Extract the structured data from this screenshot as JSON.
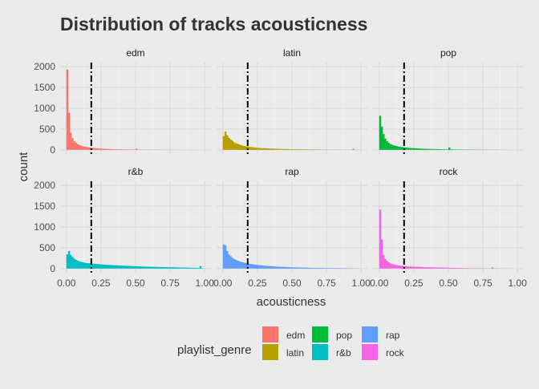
{
  "chart_data": {
    "type": "histogram-facet",
    "title": "Distribution of tracks acousticness",
    "xlabel": "acousticness",
    "ylabel": "count",
    "xlim": [
      0,
      1
    ],
    "ylim": [
      0,
      2000
    ],
    "x_ticks": [
      "0.00",
      "0.25",
      "0.50",
      "0.75",
      "1.00"
    ],
    "y_ticks": [
      "0",
      "500",
      "1000",
      "1500",
      "2000"
    ],
    "bin_width": 0.0125,
    "reference_line": {
      "x": 0.18,
      "style": "dashed-dotted",
      "color": "#000000"
    },
    "legend": {
      "title": "playlist_genre",
      "position": "bottom",
      "entries": [
        {
          "label": "edm",
          "color": "#F8766D"
        },
        {
          "label": "latin",
          "color": "#B79F00"
        },
        {
          "label": "pop",
          "color": "#00BA38"
        },
        {
          "label": "r&b",
          "color": "#00BFC4"
        },
        {
          "label": "rap",
          "color": "#619CFF"
        },
        {
          "label": "rock",
          "color": "#F564E3"
        }
      ]
    },
    "series": [
      {
        "name": "edm",
        "color": "#F8766D",
        "values": [
          1930,
          890,
          410,
          280,
          210,
          170,
          140,
          115,
          100,
          85,
          75,
          70,
          60,
          55,
          50,
          45,
          40,
          38,
          35,
          30,
          28,
          25,
          25,
          22,
          20,
          20,
          18,
          16,
          15,
          14,
          12,
          12,
          10,
          10,
          9,
          8,
          8,
          7,
          6,
          6,
          30,
          6,
          5,
          5,
          4,
          4,
          4,
          3,
          3,
          3,
          3,
          2,
          2,
          2,
          2,
          2,
          2,
          1,
          1,
          1,
          1,
          1,
          1,
          1,
          1,
          0,
          0,
          0,
          0,
          0,
          0,
          0,
          0,
          0,
          0,
          0,
          0,
          0,
          0,
          0
        ]
      },
      {
        "name": "latin",
        "color": "#B79F00",
        "values": [
          330,
          440,
          350,
          290,
          250,
          220,
          180,
          160,
          150,
          130,
          110,
          100,
          90,
          85,
          80,
          70,
          65,
          60,
          55,
          50,
          50,
          45,
          40,
          40,
          38,
          35,
          32,
          30,
          30,
          28,
          25,
          25,
          22,
          22,
          20,
          20,
          18,
          18,
          16,
          15,
          15,
          14,
          13,
          12,
          12,
          11,
          10,
          10,
          9,
          9,
          8,
          8,
          8,
          7,
          7,
          6,
          6,
          6,
          5,
          5,
          5,
          5,
          4,
          4,
          4,
          4,
          3,
          3,
          3,
          3,
          3,
          2,
          2,
          2,
          2,
          25,
          2,
          1,
          0,
          0
        ]
      },
      {
        "name": "pop",
        "color": "#00BA38",
        "values": [
          820,
          560,
          380,
          270,
          210,
          170,
          140,
          120,
          105,
          95,
          85,
          75,
          70,
          65,
          60,
          55,
          50,
          45,
          42,
          40,
          38,
          35,
          33,
          30,
          28,
          26,
          25,
          24,
          22,
          21,
          20,
          19,
          18,
          17,
          16,
          15,
          14,
          13,
          12,
          11,
          55,
          10,
          10,
          9,
          9,
          8,
          8,
          7,
          7,
          6,
          6,
          6,
          5,
          5,
          5,
          4,
          4,
          4,
          4,
          3,
          3,
          3,
          3,
          3,
          2,
          2,
          2,
          2,
          2,
          2,
          1,
          1,
          1,
          1,
          0,
          0,
          0,
          0,
          0,
          0
        ]
      },
      {
        "name": "r&b",
        "color": "#00BFC4",
        "values": [
          340,
          420,
          330,
          280,
          240,
          210,
          190,
          170,
          160,
          150,
          140,
          135,
          130,
          125,
          120,
          115,
          110,
          108,
          105,
          100,
          98,
          95,
          92,
          90,
          88,
          85,
          82,
          80,
          78,
          76,
          74,
          72,
          70,
          68,
          66,
          64,
          62,
          60,
          58,
          56,
          54,
          52,
          50,
          48,
          47,
          46,
          45,
          44,
          43,
          42,
          41,
          40,
          39,
          38,
          37,
          36,
          35,
          34,
          33,
          32,
          31,
          30,
          29,
          28,
          27,
          26,
          25,
          24,
          23,
          22,
          21,
          20,
          19,
          18,
          17,
          16,
          15,
          60,
          10,
          0
        ]
      },
      {
        "name": "rap",
        "color": "#619CFF",
        "values": [
          580,
          560,
          420,
          340,
          300,
          260,
          230,
          210,
          190,
          175,
          160,
          150,
          140,
          130,
          120,
          112,
          105,
          100,
          95,
          90,
          85,
          80,
          76,
          72,
          68,
          64,
          60,
          57,
          54,
          51,
          48,
          46,
          44,
          42,
          40,
          38,
          36,
          34,
          32,
          30,
          29,
          28,
          27,
          26,
          25,
          24,
          23,
          22,
          21,
          20,
          19,
          18,
          17,
          16,
          15,
          15,
          14,
          14,
          13,
          13,
          12,
          12,
          11,
          11,
          10,
          10,
          9,
          9,
          8,
          8,
          7,
          7,
          6,
          6,
          5,
          5,
          4,
          3,
          2,
          0
        ]
      },
      {
        "name": "rock",
        "color": "#F564E3",
        "values": [
          1420,
          700,
          330,
          230,
          180,
          150,
          125,
          110,
          98,
          88,
          80,
          74,
          68,
          64,
          60,
          56,
          52,
          50,
          48,
          46,
          44,
          42,
          40,
          38,
          36,
          34,
          33,
          32,
          31,
          30,
          29,
          28,
          27,
          26,
          25,
          24,
          23,
          22,
          21,
          20,
          19,
          18,
          17,
          16,
          15,
          14,
          13,
          12,
          11,
          10,
          10,
          9,
          9,
          8,
          8,
          7,
          7,
          6,
          6,
          5,
          5,
          5,
          4,
          4,
          4,
          30,
          3,
          3,
          3,
          2,
          2,
          2,
          2,
          1,
          1,
          1,
          1,
          0,
          0,
          0
        ]
      }
    ]
  }
}
